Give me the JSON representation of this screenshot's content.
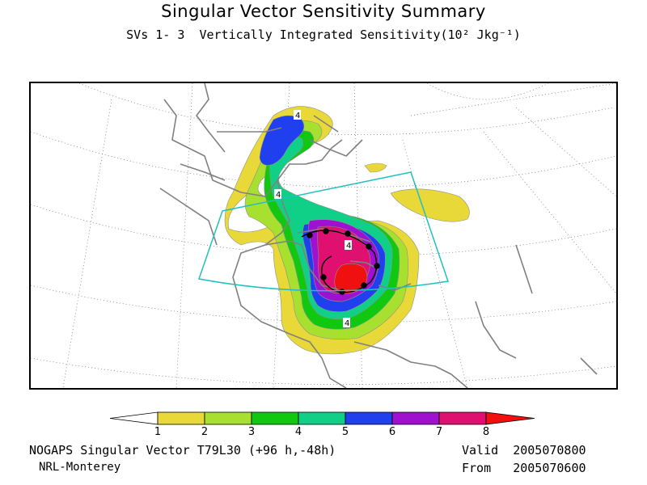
{
  "title": "Singular Vector Sensitivity Summary",
  "subtitle": "SVs 1- 3  Vertically Integrated Sensitivity(10² Jkg⁻¹)",
  "map": {
    "contour_labels": [
      "4",
      "4",
      "4",
      "4"
    ],
    "box_color": "#20c0c0",
    "coast_color": "#808080",
    "grid_color": "#707070"
  },
  "colorbar": {
    "labels": [
      "1",
      "2",
      "3",
      "4",
      "5",
      "6",
      "7",
      "8"
    ],
    "colors": [
      "#ffffff",
      "#e8d838",
      "#a8e030",
      "#10c810",
      "#10d088",
      "#2040f0",
      "#a010d0",
      "#e01070",
      "#f01010"
    ]
  },
  "footer": {
    "model": "NOGAPS Singular Vector T79L30 (+96 h,-48h)",
    "org": "NRL-Monterey",
    "valid_label": "Valid",
    "valid_value": "2005070800",
    "from_label": "From",
    "from_value": "2005070600"
  }
}
